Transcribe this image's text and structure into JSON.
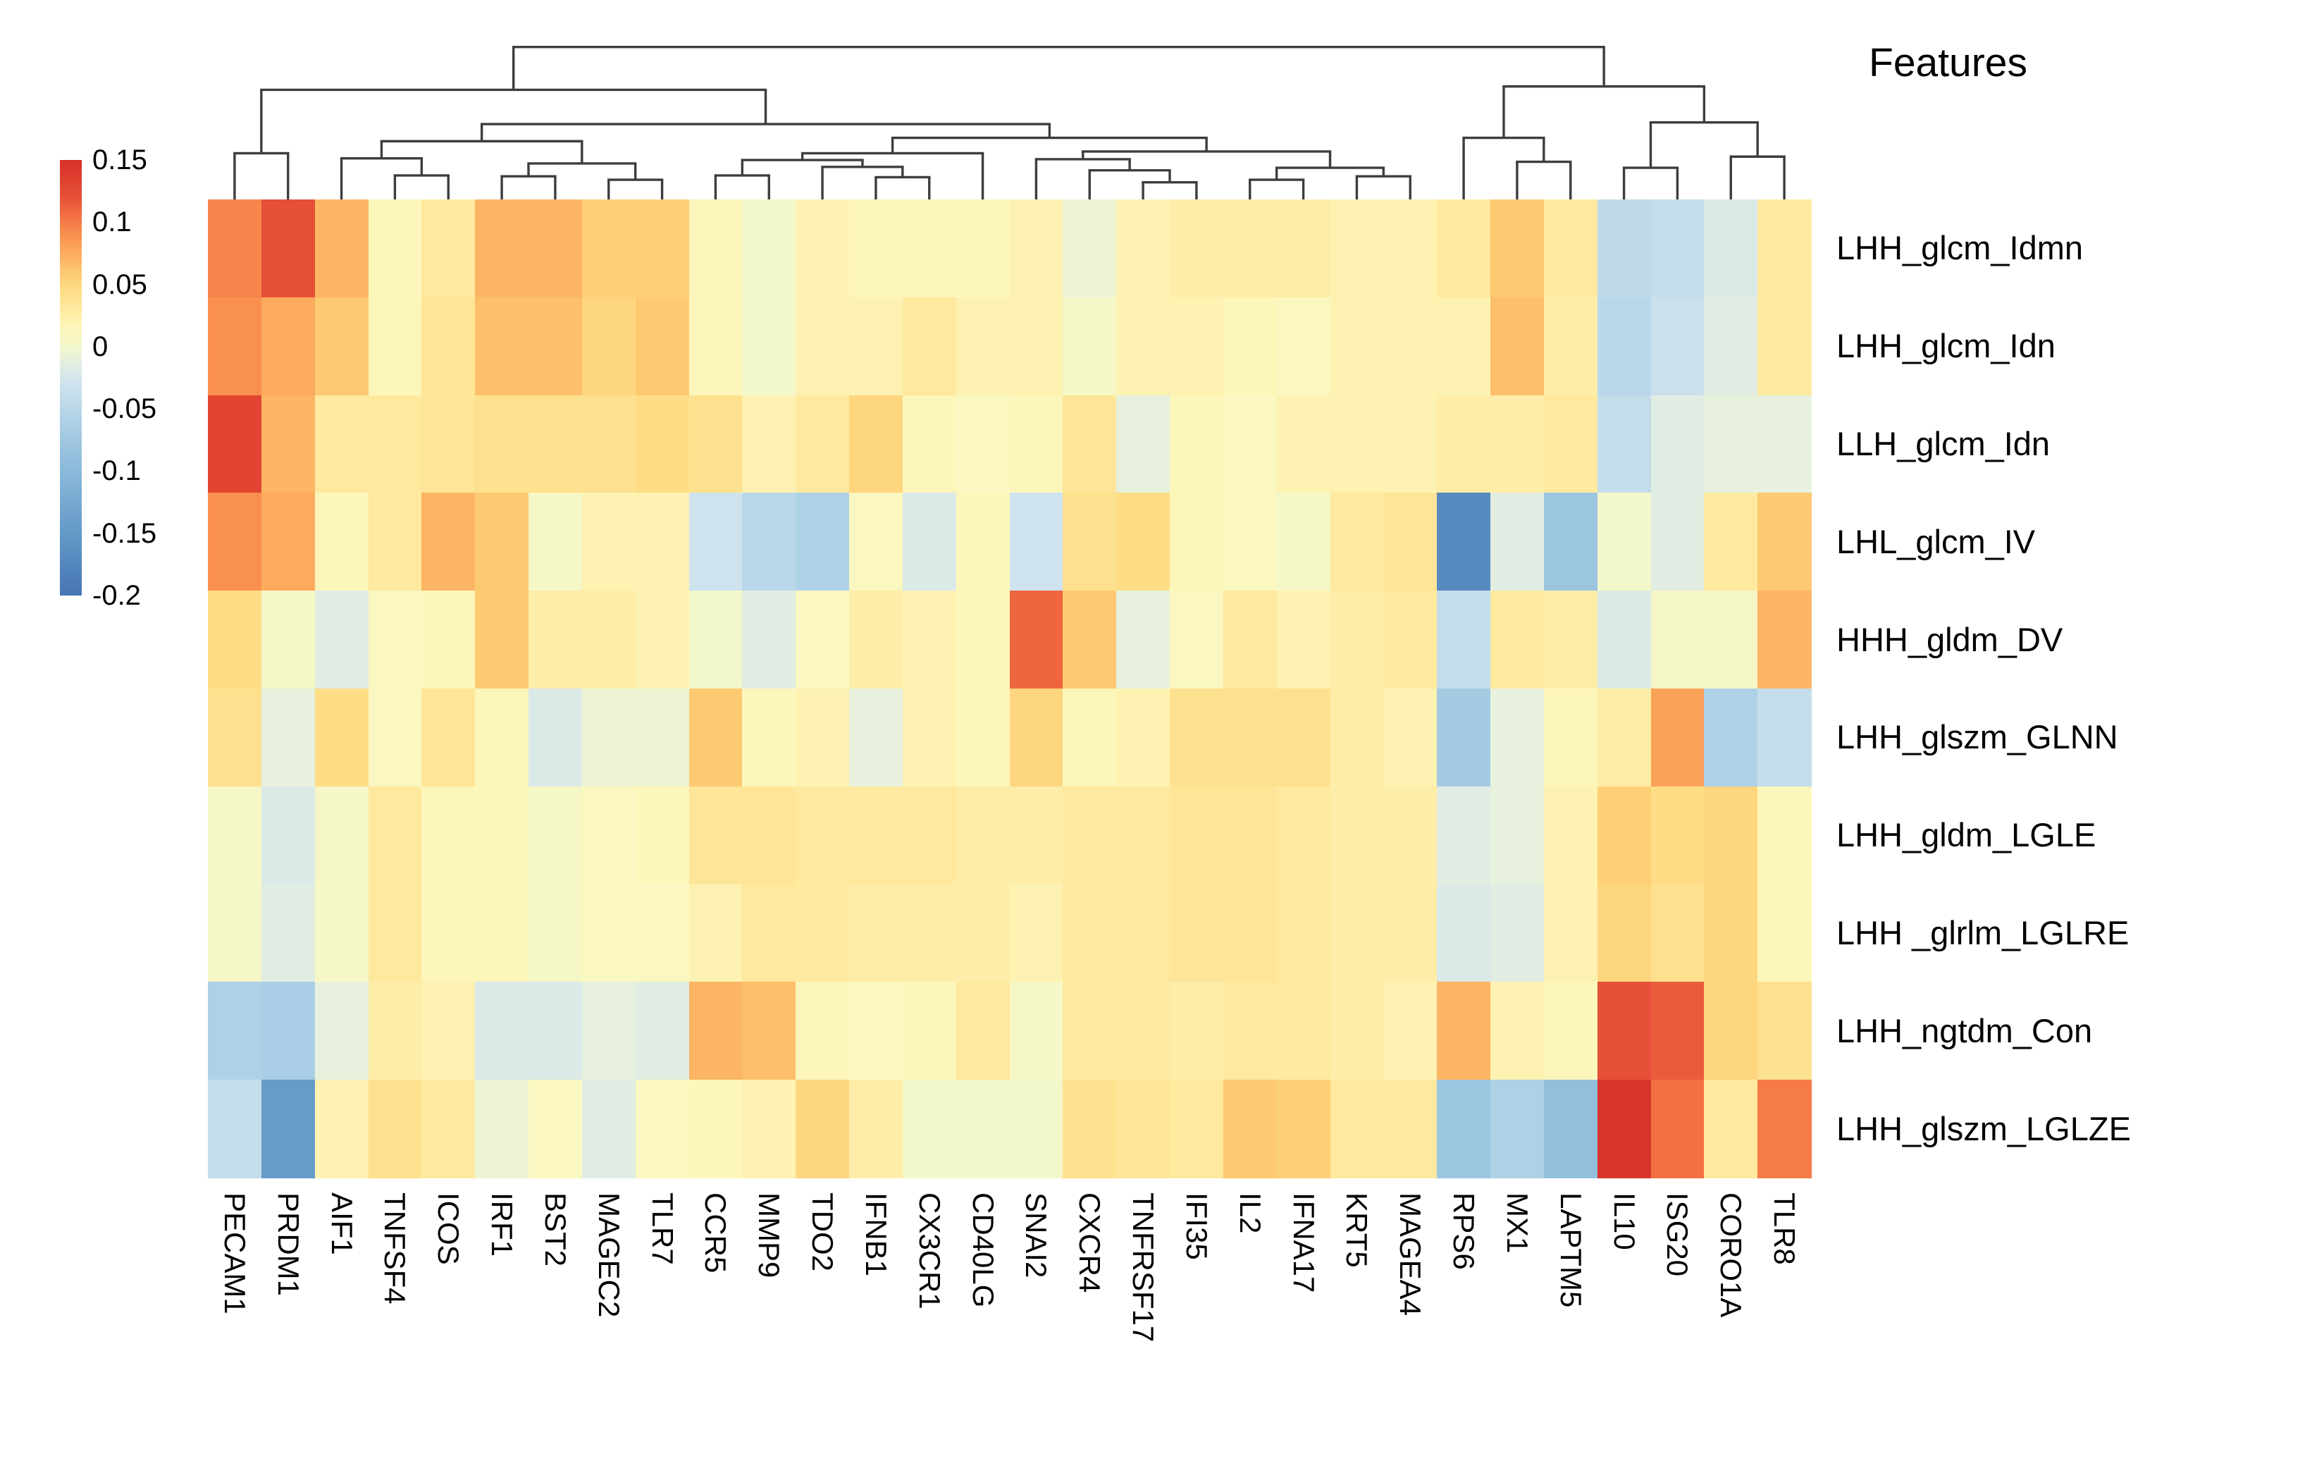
{
  "chart_data": {
    "type": "heatmap",
    "title": "Features",
    "rows": [
      "LHH_glcm_Idmn",
      "LHH_glcm_Idn",
      "LLH_glcm_Idn",
      "LHL_glcm_IV",
      "HHH_gldm_DV",
      "LHH_glszm_GLNN",
      "LHH_gldm_LGLE",
      "LHH _glrlm_LGLRE",
      "LHH_ngtdm_Con",
      "LHH_glszm_LGLZE"
    ],
    "columns": [
      "PECAM1",
      "PRDM1",
      "AIF1",
      "TNFSF4",
      "ICOS",
      "IRF1",
      "BST2",
      "MAGEC2",
      "TLR7",
      "CCR5",
      "MMP9",
      "TDO2",
      "IFNB1",
      "CX3CR1",
      "CD40LG",
      "SNAI2",
      "CXCR4",
      "TNFRSF17",
      "IFI35",
      "IL2",
      "IFNA17",
      "KRT5",
      "MAGEA4",
      "RPS6",
      "MX1",
      "LAPTM5",
      "IL10",
      "ISG20",
      "CORO1A",
      "TLR8"
    ],
    "values": [
      [
        0.095,
        0.12,
        0.07,
        0.015,
        0.03,
        0.07,
        0.07,
        0.055,
        0.055,
        0.015,
        0.0,
        0.02,
        0.015,
        0.015,
        0.015,
        0.02,
        -0.005,
        0.02,
        0.025,
        0.025,
        0.025,
        0.02,
        0.02,
        0.03,
        0.06,
        0.03,
        -0.045,
        -0.04,
        -0.02,
        0.03
      ],
      [
        0.09,
        0.075,
        0.06,
        0.015,
        0.035,
        0.065,
        0.065,
        0.05,
        0.06,
        0.015,
        0.0,
        0.02,
        0.02,
        0.03,
        0.02,
        0.02,
        0.005,
        0.02,
        0.02,
        0.015,
        0.01,
        0.02,
        0.02,
        0.02,
        0.065,
        0.025,
        -0.05,
        -0.035,
        -0.015,
        0.03
      ],
      [
        0.13,
        0.07,
        0.03,
        0.03,
        0.035,
        0.04,
        0.04,
        0.04,
        0.045,
        0.04,
        0.02,
        0.03,
        0.05,
        0.015,
        0.01,
        0.015,
        0.035,
        -0.01,
        0.015,
        0.01,
        0.02,
        0.02,
        0.02,
        0.025,
        0.025,
        0.03,
        -0.04,
        -0.015,
        -0.01,
        -0.01
      ],
      [
        0.09,
        0.075,
        0.015,
        0.03,
        0.07,
        0.06,
        0.005,
        0.02,
        0.02,
        -0.03,
        -0.05,
        -0.06,
        0.01,
        -0.02,
        0.015,
        -0.03,
        0.04,
        0.045,
        0.015,
        0.01,
        0.005,
        0.03,
        0.035,
        -0.17,
        -0.015,
        -0.08,
        0.0,
        -0.015,
        0.03,
        0.06
      ],
      [
        0.045,
        0.005,
        -0.015,
        0.01,
        0.015,
        0.06,
        0.025,
        0.025,
        0.02,
        0.0,
        -0.015,
        0.01,
        0.025,
        0.02,
        0.015,
        0.11,
        0.06,
        -0.01,
        0.01,
        0.03,
        0.02,
        0.025,
        0.03,
        -0.04,
        0.03,
        0.025,
        -0.02,
        0.005,
        0.005,
        0.07
      ],
      [
        0.04,
        -0.01,
        0.045,
        0.01,
        0.035,
        0.015,
        -0.02,
        -0.005,
        -0.005,
        0.06,
        0.015,
        0.02,
        -0.01,
        0.02,
        0.015,
        0.05,
        0.015,
        0.02,
        0.04,
        0.04,
        0.04,
        0.025,
        0.02,
        -0.07,
        -0.01,
        0.015,
        0.025,
        0.08,
        -0.06,
        -0.04
      ],
      [
        0.005,
        -0.02,
        0.005,
        0.03,
        0.015,
        0.015,
        0.005,
        0.01,
        0.015,
        0.035,
        0.035,
        0.03,
        0.03,
        0.03,
        0.025,
        0.025,
        0.03,
        0.03,
        0.035,
        0.035,
        0.03,
        0.025,
        0.025,
        -0.015,
        -0.01,
        0.02,
        0.055,
        0.045,
        0.05,
        0.015
      ],
      [
        0.005,
        -0.015,
        0.005,
        0.03,
        0.015,
        0.015,
        0.005,
        0.01,
        0.01,
        0.02,
        0.03,
        0.03,
        0.025,
        0.025,
        0.025,
        0.02,
        0.03,
        0.03,
        0.035,
        0.035,
        0.03,
        0.025,
        0.025,
        -0.02,
        -0.015,
        0.02,
        0.05,
        0.04,
        0.05,
        0.015
      ],
      [
        -0.06,
        -0.065,
        -0.01,
        0.025,
        0.02,
        -0.02,
        -0.02,
        -0.01,
        -0.015,
        0.07,
        0.065,
        0.015,
        0.01,
        0.015,
        0.03,
        0.005,
        0.03,
        0.03,
        0.025,
        0.03,
        0.03,
        0.025,
        0.02,
        0.07,
        0.02,
        0.015,
        0.12,
        0.115,
        0.05,
        0.04
      ],
      [
        -0.04,
        -0.145,
        0.02,
        0.04,
        0.03,
        -0.005,
        0.01,
        -0.015,
        0.01,
        0.015,
        0.02,
        0.05,
        0.025,
        0.0,
        0.0,
        0.0,
        0.04,
        0.035,
        0.03,
        0.06,
        0.055,
        0.03,
        0.03,
        -0.08,
        -0.06,
        -0.09,
        0.145,
        0.105,
        0.03,
        0.1
      ]
    ],
    "colorbar": {
      "tick_labels": [
        "0.15",
        "0.1",
        "0.05",
        "0",
        "-0.05",
        "-0.1",
        "-0.15",
        "-0.2"
      ],
      "tick_values": [
        0.15,
        0.1,
        0.05,
        0,
        -0.05,
        -0.1,
        -0.15,
        -0.2
      ],
      "vmax": 0.15,
      "vmin": -0.2,
      "position": "left"
    },
    "colormap_stops": [
      [
        -0.2,
        "#4575b4"
      ],
      [
        -0.15,
        "#6399c7"
      ],
      [
        -0.1,
        "#8ab9da"
      ],
      [
        -0.06,
        "#aed1e6"
      ],
      [
        -0.03,
        "#cfe3ee"
      ],
      [
        -0.012,
        "#e4efe0"
      ],
      [
        0.0,
        "#f3f8cb"
      ],
      [
        0.015,
        "#fdf6bb"
      ],
      [
        0.03,
        "#fee99f"
      ],
      [
        0.045,
        "#fedd86"
      ],
      [
        0.06,
        "#fdc971"
      ],
      [
        0.075,
        "#fcab5e"
      ],
      [
        0.09,
        "#f9904f"
      ],
      [
        0.105,
        "#f37043"
      ],
      [
        0.12,
        "#e65038"
      ],
      [
        0.15,
        "#d73027"
      ]
    ],
    "column_dendrogram": {
      "h": 0.89,
      "c": [
        {
          "h": 0.64,
          "c": [
            {
              "h": 0.27,
              "c": [
                {
                  "i": 0
                },
                {
                  "i": 1
                }
              ]
            },
            {
              "h": 0.44,
              "c": [
                {
                  "h": 0.34,
                  "c": [
                    {
                      "h": 0.24,
                      "c": [
                        {
                          "i": 2
                        },
                        {
                          "h": 0.14,
                          "c": [
                            {
                              "i": 3
                            },
                            {
                              "i": 4
                            }
                          ]
                        }
                      ]
                    },
                    {
                      "h": 0.21,
                      "c": [
                        {
                          "h": 0.135,
                          "c": [
                            {
                              "i": 5
                            },
                            {
                              "i": 6
                            }
                          ]
                        },
                        {
                          "h": 0.115,
                          "c": [
                            {
                              "i": 7
                            },
                            {
                              "i": 8
                            }
                          ]
                        }
                      ]
                    }
                  ]
                },
                {
                  "h": 0.36,
                  "c": [
                    {
                      "h": 0.27,
                      "c": [
                        {
                          "h": 0.23,
                          "c": [
                            {
                              "h": 0.14,
                              "c": [
                                {
                                  "i": 9
                                },
                                {
                                  "i": 10
                                }
                              ]
                            },
                            {
                              "h": 0.19,
                              "c": [
                                {
                                  "i": 11
                                },
                                {
                                  "h": 0.13,
                                  "c": [
                                    {
                                      "i": 12
                                    },
                                    {
                                      "i": 13
                                    }
                                  ]
                                }
                              ]
                            }
                          ]
                        },
                        {
                          "i": 14
                        }
                      ]
                    },
                    {
                      "h": 0.28,
                      "c": [
                        {
                          "h": 0.235,
                          "c": [
                            {
                              "i": 15
                            },
                            {
                              "h": 0.17,
                              "c": [
                                {
                                  "i": 16
                                },
                                {
                                  "h": 0.1,
                                  "c": [
                                    {
                                      "i": 17
                                    },
                                    {
                                      "i": 18
                                    }
                                  ]
                                }
                              ]
                            }
                          ]
                        },
                        {
                          "h": 0.185,
                          "c": [
                            {
                              "h": 0.115,
                              "c": [
                                {
                                  "i": 19
                                },
                                {
                                  "i": 20
                                }
                              ]
                            },
                            {
                              "h": 0.135,
                              "c": [
                                {
                                  "i": 21
                                },
                                {
                                  "i": 22
                                }
                              ]
                            }
                          ]
                        }
                      ]
                    }
                  ]
                }
              ]
            }
          ]
        },
        {
          "h": 0.66,
          "c": [
            {
              "h": 0.36,
              "c": [
                {
                  "i": 23
                },
                {
                  "h": 0.22,
                  "c": [
                    {
                      "i": 24
                    },
                    {
                      "i": 25
                    }
                  ]
                }
              ]
            },
            {
              "h": 0.45,
              "c": [
                {
                  "h": 0.185,
                  "c": [
                    {
                      "i": 26
                    },
                    {
                      "i": 27
                    }
                  ]
                },
                {
                  "h": 0.25,
                  "c": [
                    {
                      "i": 28
                    },
                    {
                      "i": 29
                    }
                  ]
                }
              ]
            }
          ]
        }
      ]
    }
  }
}
